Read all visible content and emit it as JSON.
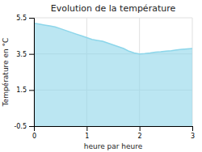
{
  "chart_data": {
    "type": "area",
    "title": "Evolution de la température",
    "xlabel": "heure par heure",
    "ylabel": "Température en °C",
    "x": [
      0,
      0.1,
      0.2,
      0.3,
      0.4,
      0.5,
      0.6,
      0.7,
      0.8,
      0.9,
      1.0,
      1.1,
      1.2,
      1.3,
      1.4,
      1.5,
      1.6,
      1.7,
      1.8,
      1.9,
      2.0,
      2.1,
      2.2,
      2.3,
      2.4,
      2.5,
      2.6,
      2.7,
      2.8,
      2.9,
      3.0
    ],
    "values": [
      5.2,
      5.15,
      5.1,
      5.05,
      5.0,
      4.9,
      4.8,
      4.7,
      4.6,
      4.5,
      4.4,
      4.3,
      4.25,
      4.2,
      4.1,
      4.0,
      3.9,
      3.8,
      3.65,
      3.55,
      3.5,
      3.52,
      3.55,
      3.6,
      3.62,
      3.65,
      3.68,
      3.72,
      3.75,
      3.78,
      3.8
    ],
    "color": "#8dd6ea",
    "xlim": [
      0,
      3
    ],
    "ylim": [
      -0.5,
      5.5
    ],
    "xticks": [
      0,
      1,
      2,
      3
    ],
    "yticks": [
      -0.5,
      1.5,
      3.5,
      5.5
    ],
    "grid": true
  }
}
